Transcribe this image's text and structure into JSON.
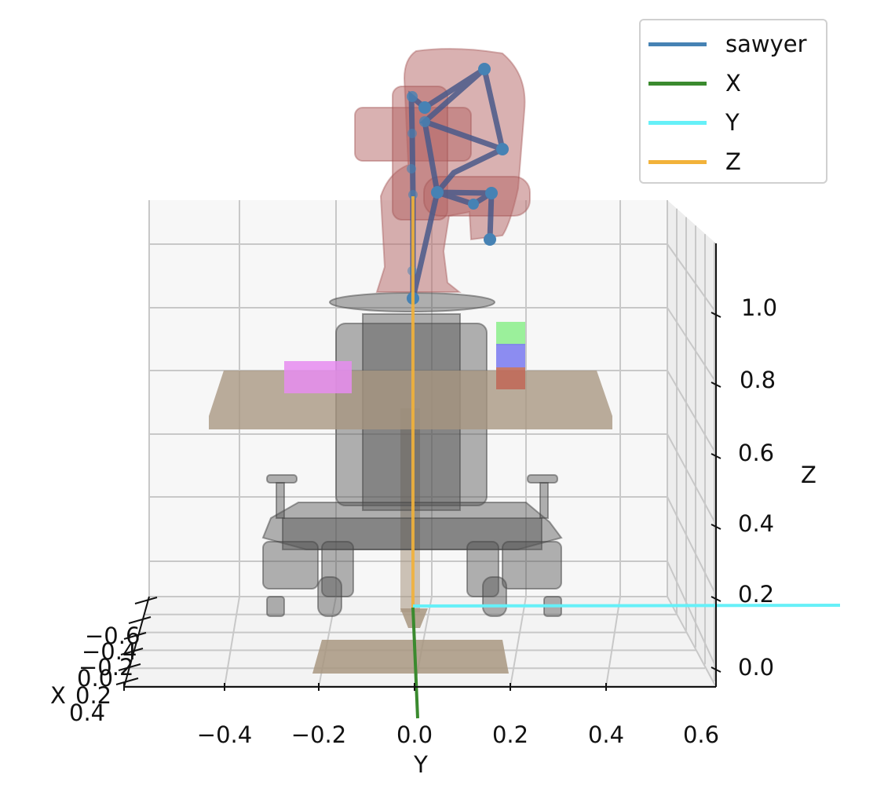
{
  "chart_data": {
    "type": "3d-scene",
    "xlabel": "X",
    "ylabel": "Y",
    "zlabel": "Z",
    "x_ticks": [
      "−0.6",
      "−0.4",
      "−0.2",
      "0.0",
      "0.2",
      "0.4"
    ],
    "y_ticks": [
      "−0.4",
      "−0.2",
      "0.0",
      "0.2",
      "0.4",
      "0.6"
    ],
    "z_ticks": [
      "0.0",
      "0.2",
      "0.4",
      "0.6",
      "0.8",
      "1.0"
    ],
    "ylim": [
      -0.6,
      0.6
    ],
    "zlim": [
      0.0,
      1.2
    ],
    "grid": true,
    "legend_placement": "top-right",
    "series": [
      {
        "name": "sawyer",
        "color": "#4682b4"
      },
      {
        "name": "X",
        "color": "#3a8a2e"
      },
      {
        "name": "Y",
        "color": "#66f0f8"
      },
      {
        "name": "Z",
        "color": "#f2b23a"
      }
    ],
    "objects": [
      {
        "name": "table",
        "color": "#a89680"
      },
      {
        "name": "pink-block",
        "color": "#e68cf0"
      },
      {
        "name": "green-block",
        "color": "#90ee90"
      },
      {
        "name": "blue-block",
        "color": "#8080f0"
      },
      {
        "name": "red-block",
        "color": "#c06a5a"
      }
    ]
  }
}
